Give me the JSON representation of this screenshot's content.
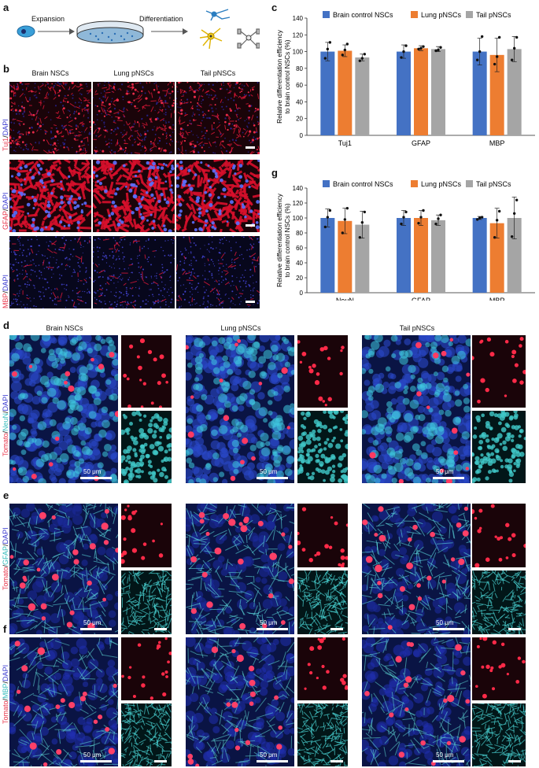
{
  "panel_letters": {
    "a": "a",
    "b": "b",
    "c": "c",
    "d": "d",
    "e": "e",
    "f": "f",
    "g": "g"
  },
  "schematic": {
    "expansion": "Expansion",
    "differentiation": "Differentiation"
  },
  "panel_b": {
    "columns": [
      "Brain NSCs",
      "Lung pNSCs",
      "Tail pNSCs"
    ],
    "rows": [
      {
        "marker": "Tuj1",
        "sep": "/",
        "dapi": "DAPI"
      },
      {
        "marker": "GFAP",
        "sep": "/",
        "dapi": "DAPI"
      },
      {
        "marker": "MBP",
        "sep": "/",
        "dapi": "DAPI"
      }
    ]
  },
  "panels_def": {
    "columns": [
      "Brain NSCs",
      "Lung pNSCs",
      "Tail pNSCs"
    ],
    "scale_label": "50 μm",
    "rows": [
      {
        "letter": "d",
        "tomato": "Tomato",
        "sep1": "/",
        "marker": "NeuN",
        "sep2": "/",
        "dapi": "DAPI"
      },
      {
        "letter": "e",
        "tomato": "Tomato",
        "sep1": "/",
        "marker": "GFAP",
        "sep2": "/",
        "dapi": "DAPI"
      },
      {
        "letter": "f",
        "tomato": "Tomato",
        "sep1": "/",
        "marker": "MBP",
        "sep2": "/",
        "dapi": "DAPI"
      }
    ]
  },
  "colors": {
    "brain": "#4472c4",
    "lung": "#ed7d31",
    "tail": "#a5a5a5",
    "tomato": "#e8344a",
    "cyan": "#33cccc",
    "dapi": "#3a3ad0"
  },
  "chart_data": [
    {
      "panel": "c",
      "type": "bar",
      "categories": [
        "Tuj1",
        "GFAP",
        "MBP"
      ],
      "ylabel": "Relative differentiation efficiency to brain control NSCs (%)",
      "ylim": [
        0,
        140
      ],
      "yticks": [
        0,
        20,
        40,
        60,
        80,
        100,
        120,
        140
      ],
      "legend": "top",
      "series": [
        {
          "name": "Brain control NSCs",
          "values": [
            100,
            100,
            100
          ],
          "err": [
            11,
            8,
            16
          ],
          "points": [
            [
              92,
              103,
              111
            ],
            [
              93,
              100,
              107
            ],
            [
              90,
              100,
              118
            ]
          ]
        },
        {
          "name": "Lung pNSCs",
          "values": [
            101,
            104,
            96
          ],
          "err": [
            7,
            3,
            20
          ],
          "points": [
            [
              96,
              102,
              109
            ],
            [
              103,
              104,
              106
            ],
            [
              85,
              94,
              117
            ]
          ]
        },
        {
          "name": "Tail pNSCs",
          "values": [
            93,
            103,
            103
          ],
          "err": [
            4,
            3,
            15
          ],
          "points": [
            [
              89,
              92,
              97
            ],
            [
              101,
              102,
              105
            ],
            [
              90,
              104,
              117
            ]
          ]
        }
      ]
    },
    {
      "panel": "g",
      "type": "bar",
      "categories": [
        "NeuN",
        "GFAP",
        "MBP"
      ],
      "ylabel": "Relative differentiation efficiency to brain control NSCs (%)",
      "ylim": [
        0,
        140
      ],
      "yticks": [
        0,
        20,
        40,
        60,
        80,
        100,
        120,
        140
      ],
      "legend": "top",
      "series": [
        {
          "name": "Brain control NSCs",
          "values": [
            100,
            100,
            100
          ],
          "err": [
            12,
            10,
            2
          ],
          "points": [
            [
              88,
              101,
              110
            ],
            [
              92,
              101,
              108
            ],
            [
              98,
              100,
              101
            ]
          ]
        },
        {
          "name": "Lung pNSCs",
          "values": [
            96,
            100,
            93
          ],
          "err": [
            17,
            10,
            20
          ],
          "points": [
            [
              80,
              98,
              113
            ],
            [
              93,
              101,
              110
            ],
            [
              74,
              97,
              109
            ]
          ]
        },
        {
          "name": "Tail pNSCs",
          "values": [
            91,
            97,
            100
          ],
          "err": [
            18,
            7,
            28
          ],
          "points": [
            [
              74,
              94,
              108
            ],
            [
              92,
              99,
              104
            ],
            [
              75,
              106,
              124
            ]
          ]
        }
      ]
    }
  ]
}
